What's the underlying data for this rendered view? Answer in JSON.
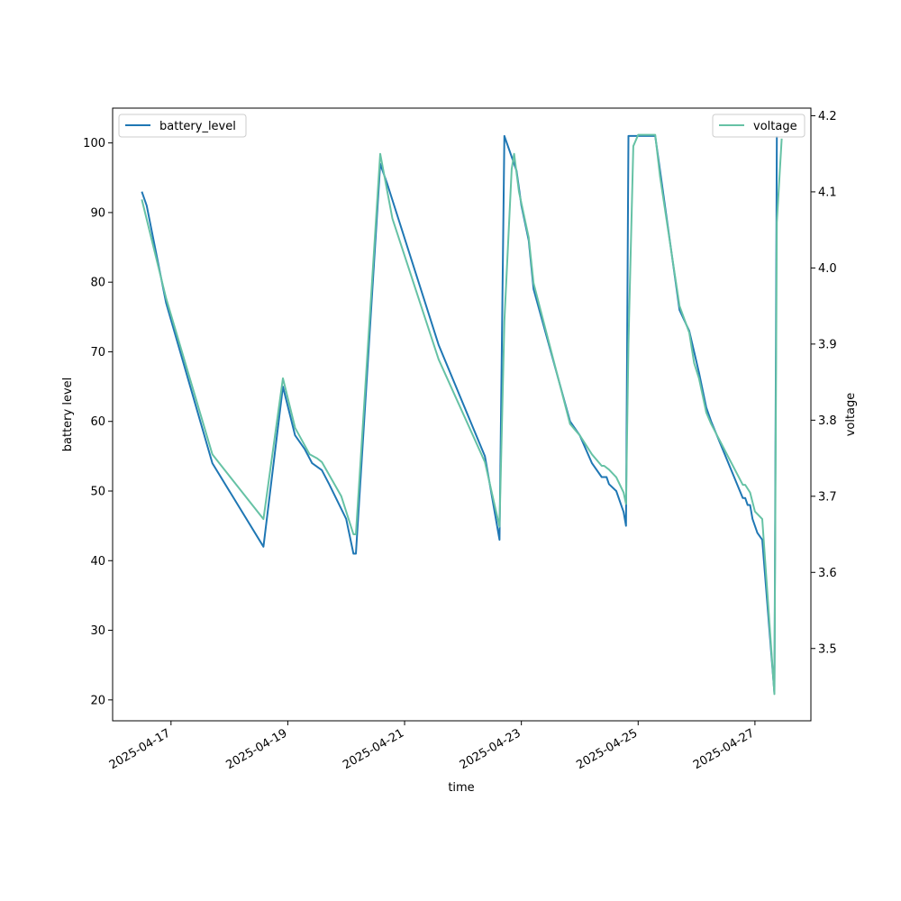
{
  "chart_data": {
    "type": "line",
    "title": "",
    "xlabel": "time",
    "ylabel": "battery level",
    "y2label": "voltage",
    "xlim": [
      "2025-04-16T00:00",
      "2025-04-27T23:00"
    ],
    "ylim": [
      17,
      105
    ],
    "y2lim": [
      3.405,
      4.21
    ],
    "x_ticks": [
      "2025-04-17",
      "2025-04-19",
      "2025-04-21",
      "2025-04-23",
      "2025-04-25",
      "2025-04-27"
    ],
    "y_ticks": [
      20,
      30,
      40,
      50,
      60,
      70,
      80,
      90,
      100
    ],
    "y2_ticks": [
      3.5,
      3.6,
      3.7,
      3.8,
      3.9,
      4.0,
      4.1,
      4.2
    ],
    "grid": false,
    "legends": [
      {
        "placement": "upper-left",
        "entries": [
          "battery_level"
        ]
      },
      {
        "placement": "upper-right",
        "entries": [
          "voltage"
        ]
      }
    ],
    "colors": {
      "battery_level": "#1f77b4",
      "voltage": "#66c2a5"
    },
    "series": [
      {
        "name": "battery_level",
        "axis": "left",
        "points": [
          [
            "2025-04-16T12:00",
            93
          ],
          [
            "2025-04-16T14:00",
            91
          ],
          [
            "2025-04-16T22:00",
            77
          ],
          [
            "2025-04-17T17:00",
            54
          ],
          [
            "2025-04-18T14:00",
            42
          ],
          [
            "2025-04-18T22:00",
            65
          ],
          [
            "2025-04-19T03:00",
            58
          ],
          [
            "2025-04-19T07:00",
            56
          ],
          [
            "2025-04-19T10:00",
            54
          ],
          [
            "2025-04-19T14:00",
            53
          ],
          [
            "2025-04-19T17:00",
            51
          ],
          [
            "2025-04-20T00:00",
            46
          ],
          [
            "2025-04-20T03:00",
            41
          ],
          [
            "2025-04-20T04:00",
            41
          ],
          [
            "2025-04-20T14:00",
            97
          ],
          [
            "2025-04-20T17:00",
            94
          ],
          [
            "2025-04-21T14:00",
            71
          ],
          [
            "2025-04-22T09:00",
            55
          ],
          [
            "2025-04-22T15:00",
            43
          ],
          [
            "2025-04-22T17:00",
            101
          ],
          [
            "2025-04-22T22:00",
            96
          ],
          [
            "2025-04-23T00:00",
            91
          ],
          [
            "2025-04-23T03:00",
            86
          ],
          [
            "2025-04-23T05:00",
            79
          ],
          [
            "2025-04-23T20:00",
            60
          ],
          [
            "2025-04-24T00:00",
            58
          ],
          [
            "2025-04-24T05:00",
            54
          ],
          [
            "2025-04-24T09:00",
            52
          ],
          [
            "2025-04-24T11:00",
            52
          ],
          [
            "2025-04-24T12:00",
            51
          ],
          [
            "2025-04-24T15:00",
            50
          ],
          [
            "2025-04-24T18:00",
            47
          ],
          [
            "2025-04-24T19:00",
            45
          ],
          [
            "2025-04-24T20:00",
            101
          ],
          [
            "2025-04-25T07:00",
            101
          ],
          [
            "2025-04-25T09:00",
            96
          ],
          [
            "2025-04-25T17:00",
            76
          ],
          [
            "2025-04-25T21:00",
            73
          ],
          [
            "2025-04-25T23:00",
            70
          ],
          [
            "2025-04-26T01:00",
            67
          ],
          [
            "2025-04-26T04:00",
            62
          ],
          [
            "2025-04-26T06:00",
            60
          ],
          [
            "2025-04-26T19:00",
            49
          ],
          [
            "2025-04-26T20:00",
            49
          ],
          [
            "2025-04-26T21:00",
            48
          ],
          [
            "2025-04-26T22:00",
            48
          ],
          [
            "2025-04-26T23:00",
            46
          ],
          [
            "2025-04-27T01:00",
            44
          ],
          [
            "2025-04-27T03:00",
            43
          ],
          [
            "2025-04-27T08:00",
            21
          ],
          [
            "2025-04-27T09:00",
            101
          ]
        ]
      },
      {
        "name": "voltage",
        "axis": "right",
        "points": [
          [
            "2025-04-16T12:00",
            4.09
          ],
          [
            "2025-04-16T22:00",
            3.96
          ],
          [
            "2025-04-17T17:00",
            3.755
          ],
          [
            "2025-04-18T14:00",
            3.67
          ],
          [
            "2025-04-18T22:00",
            3.855
          ],
          [
            "2025-04-19T03:00",
            3.79
          ],
          [
            "2025-04-19T09:00",
            3.755
          ],
          [
            "2025-04-19T12:00",
            3.75
          ],
          [
            "2025-04-19T14:00",
            3.745
          ],
          [
            "2025-04-19T22:00",
            3.7
          ],
          [
            "2025-04-20T03:00",
            3.65
          ],
          [
            "2025-04-20T04:00",
            3.65
          ],
          [
            "2025-04-20T14:00",
            4.15
          ],
          [
            "2025-04-20T19:00",
            4.065
          ],
          [
            "2025-04-21T14:00",
            3.88
          ],
          [
            "2025-04-22T09:00",
            3.745
          ],
          [
            "2025-04-22T15:00",
            3.66
          ],
          [
            "2025-04-22T17:00",
            3.93
          ],
          [
            "2025-04-22T20:00",
            4.13
          ],
          [
            "2025-04-22T21:00",
            4.15
          ],
          [
            "2025-04-22T23:00",
            4.1
          ],
          [
            "2025-04-23T03:00",
            4.04
          ],
          [
            "2025-04-23T05:00",
            3.98
          ],
          [
            "2025-04-23T20:00",
            3.795
          ],
          [
            "2025-04-24T00:00",
            3.78
          ],
          [
            "2025-04-24T05:00",
            3.755
          ],
          [
            "2025-04-24T09:00",
            3.74
          ],
          [
            "2025-04-24T10:00",
            3.74
          ],
          [
            "2025-04-24T12:00",
            3.735
          ],
          [
            "2025-04-24T15:00",
            3.725
          ],
          [
            "2025-04-24T18:00",
            3.705
          ],
          [
            "2025-04-24T19:00",
            3.69
          ],
          [
            "2025-04-24T20:00",
            3.9
          ],
          [
            "2025-04-24T22:00",
            4.16
          ],
          [
            "2025-04-25T00:00",
            4.175
          ],
          [
            "2025-04-25T07:00",
            4.175
          ],
          [
            "2025-04-25T09:00",
            4.12
          ],
          [
            "2025-04-25T17:00",
            3.95
          ],
          [
            "2025-04-25T21:00",
            3.915
          ],
          [
            "2025-04-25T23:00",
            3.875
          ],
          [
            "2025-04-26T01:00",
            3.855
          ],
          [
            "2025-04-26T04:00",
            3.81
          ],
          [
            "2025-04-26T06:00",
            3.795
          ],
          [
            "2025-04-26T19:00",
            3.715
          ],
          [
            "2025-04-26T20:00",
            3.715
          ],
          [
            "2025-04-26T22:00",
            3.705
          ],
          [
            "2025-04-27T00:00",
            3.68
          ],
          [
            "2025-04-27T03:00",
            3.67
          ],
          [
            "2025-04-27T08:00",
            3.44
          ],
          [
            "2025-04-27T09:00",
            4.06
          ],
          [
            "2025-04-27T11:00",
            4.17
          ]
        ]
      }
    ]
  }
}
